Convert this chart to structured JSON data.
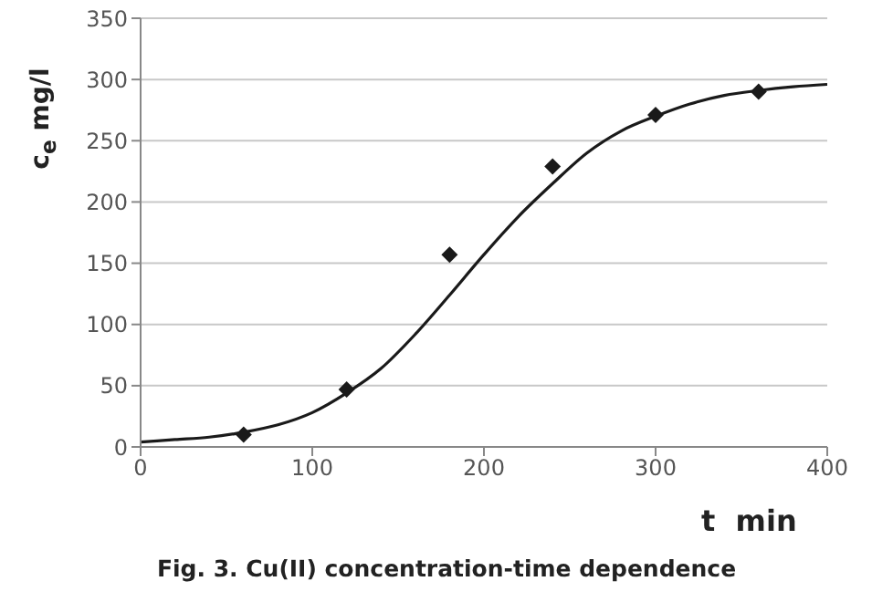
{
  "chart_data": {
    "type": "scatter",
    "title": "Fig. 3. Cu(II) concentration-time dependence",
    "xlabel": "t  min",
    "ylabel": "c$_{e}$ mg/l",
    "xlim": [
      0,
      400
    ],
    "xticks": [
      0,
      100,
      200,
      300,
      400
    ],
    "ylim": [
      0,
      350
    ],
    "yticks": [
      0,
      50,
      100,
      150,
      200,
      250,
      300,
      350
    ],
    "grid": "y",
    "series": [
      {
        "type": "line",
        "color": "#1a1a1a",
        "marker": "none",
        "line_style": "solid",
        "x": [
          0,
          20,
          40,
          60,
          80,
          100,
          120,
          140,
          160,
          180,
          200,
          220,
          240,
          260,
          280,
          300,
          320,
          340,
          360,
          380,
          400
        ],
        "values": [
          4,
          6,
          8,
          12,
          18,
          28,
          44,
          64,
          92,
          124,
          157,
          188,
          215,
          240,
          258,
          270,
          280,
          287,
          291,
          294,
          296
        ]
      },
      {
        "color": "#1a1a1a",
        "marker": "diamond",
        "x": [
          60,
          120,
          180,
          240,
          300,
          360
        ],
        "values": [
          10,
          47,
          157,
          229,
          271,
          290
        ]
      }
    ]
  }
}
